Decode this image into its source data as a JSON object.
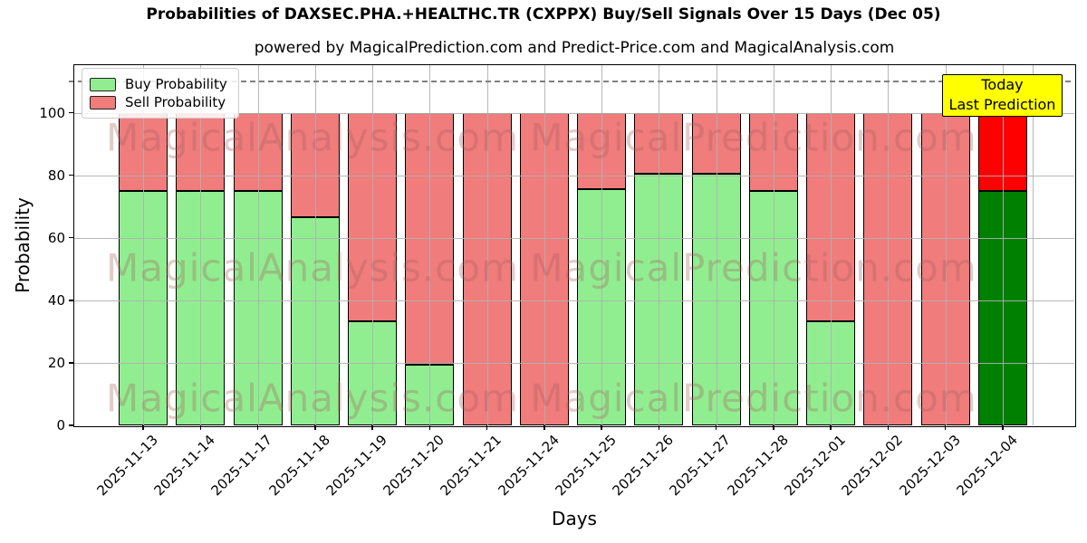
{
  "title": "Probabilities of DAXSEC.PHA.+HEALTHC.TR (CXPPX) Buy/Sell Signals Over 15 Days (Dec 05)",
  "subtitle": "powered by MagicalPrediction.com and Predict-Price.com and MagicalAnalysis.com",
  "legend": {
    "items": [
      {
        "label": "Buy Probability",
        "color": "#90ee90"
      },
      {
        "label": "Sell Probability",
        "color": "#f07c7c"
      }
    ]
  },
  "annotation_box": {
    "line1": "Today",
    "line2": "Last Prediction",
    "bg_color": "#ffff00"
  },
  "watermarks": {
    "left": "MagicalAnalysis.com",
    "right": "MagicalPrediction.com"
  },
  "axes": {
    "xlabel": "Days",
    "ylabel": "Probability",
    "yticks": [
      0,
      20,
      40,
      60,
      80,
      100
    ]
  },
  "colors": {
    "buy": "#90ee90",
    "sell": "#f07c7c",
    "today_buy": "#008000",
    "today_sell": "#ff0000",
    "bar_edge": "#000000",
    "grid": "#b0b0b0",
    "dashed_line": "#808080",
    "annotation_bg": "#ffff00",
    "watermark": "#a85f5f"
  },
  "chart_data": {
    "type": "bar",
    "stacked": true,
    "title": "Probabilities of DAXSEC.PHA.+HEALTHC.TR (CXPPX) Buy/Sell Signals Over 15 Days (Dec 05)",
    "xlabel": "Days",
    "ylabel": "Probability",
    "categories": [
      "2025-11-13",
      "2025-11-14",
      "2025-11-17",
      "2025-11-18",
      "2025-11-19",
      "2025-11-20",
      "2025-11-21",
      "2025-11-24",
      "2025-11-25",
      "2025-11-26",
      "2025-11-27",
      "2025-11-28",
      "2025-12-01",
      "2025-12-02",
      "2025-12-03",
      "2025-12-04"
    ],
    "series": [
      {
        "name": "Buy Probability",
        "values": [
          75,
          75,
          75,
          66.7,
          33.3,
          19.4,
          0,
          0,
          75.5,
          80.6,
          80.6,
          75,
          33.3,
          0,
          0,
          75
        ]
      },
      {
        "name": "Sell Probability",
        "values": [
          25,
          25,
          25,
          33.3,
          66.7,
          80.6,
          100,
          100,
          24.5,
          19.4,
          19.4,
          25,
          66.7,
          100,
          100,
          25
        ]
      }
    ],
    "today_index": 15,
    "ylim": [
      0,
      115
    ],
    "yticks": [
      0,
      20,
      40,
      60,
      80,
      100
    ],
    "dashed_line_y": 110,
    "grid": true,
    "legend_position": "upper left"
  }
}
